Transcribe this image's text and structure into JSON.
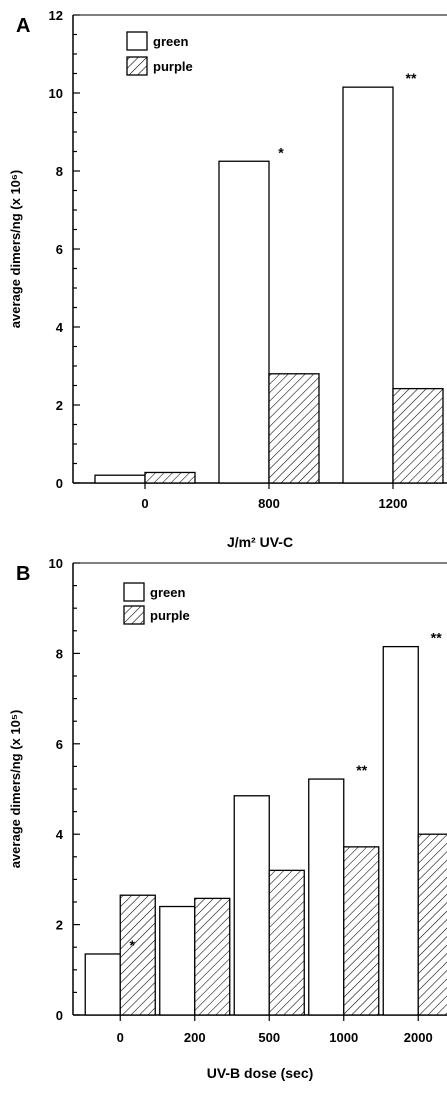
{
  "chart_data": [
    {
      "panel_label": "A",
      "type": "bar",
      "categories": [
        "0",
        "800",
        "1200"
      ],
      "series": [
        {
          "name": "green",
          "values": [
            0.2,
            8.25,
            10.15
          ],
          "fill": "white"
        },
        {
          "name": "purple",
          "values": [
            0.27,
            2.8,
            2.42
          ],
          "fill": "hatched"
        }
      ],
      "significance": [
        "",
        "*",
        "**"
      ],
      "xlabel": "J/m² UV-C",
      "ylabel": "average dimers/ng (x 10⁶)",
      "ylim": [
        0,
        12
      ],
      "yticks": [
        0,
        2,
        4,
        6,
        8,
        10,
        12
      ],
      "legend_position": "top-left",
      "grid": false
    },
    {
      "panel_label": "B",
      "type": "bar",
      "categories": [
        "0",
        "200",
        "500",
        "1000",
        "2000"
      ],
      "series": [
        {
          "name": "green",
          "values": [
            1.35,
            2.4,
            4.85,
            5.22,
            8.15
          ],
          "fill": "white"
        },
        {
          "name": "purple",
          "values": [
            2.65,
            2.58,
            3.2,
            3.72,
            4.0
          ],
          "fill": "hatched"
        }
      ],
      "significance": [
        "*",
        "",
        "",
        "**",
        "**"
      ],
      "xlabel": "UV-B dose (sec)",
      "ylabel": "average dimers/ng (x 10⁵)",
      "ylim": [
        0,
        10
      ],
      "yticks": [
        0,
        2,
        4,
        6,
        8,
        10
      ],
      "legend_position": "top-left",
      "grid": false
    }
  ]
}
